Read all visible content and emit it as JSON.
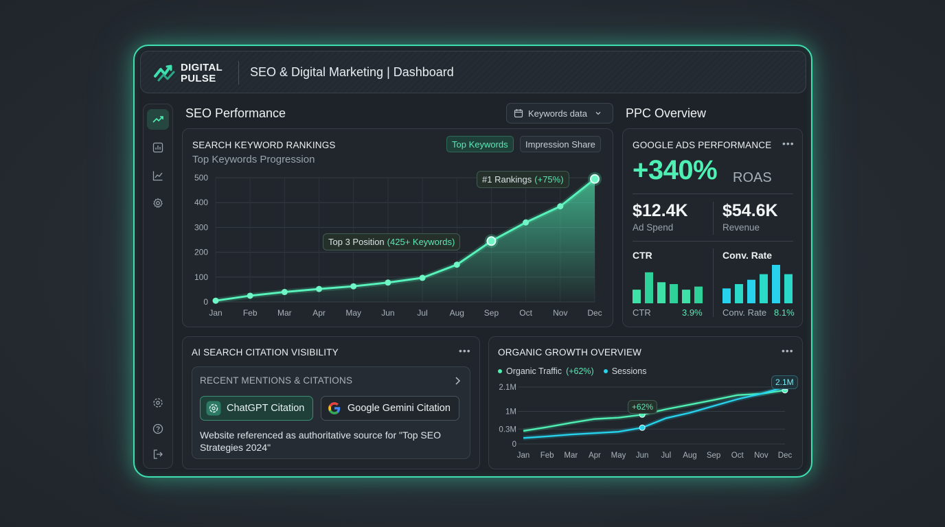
{
  "brand": {
    "line1": "DIGITAL",
    "line2": "PULSE"
  },
  "header": {
    "title": "SEO & Digital Marketing | Dashboard"
  },
  "sidebar": {
    "top_icons": [
      "trend-icon",
      "bar-chart-icon",
      "line-chart-icon",
      "settings-icon"
    ],
    "bottom_icons": [
      "gear-icon",
      "help-icon",
      "logout-icon"
    ]
  },
  "seo": {
    "section_title": "SEO Performance",
    "dropdown_label": "Keywords data",
    "card_title": "SEARCH KEYWORD RANKINGS",
    "subtitle": "Top Keywords Progression",
    "toggle": [
      "Top Keywords",
      "Impression Share"
    ],
    "tooltip_top3": {
      "label": "Top 3 Position",
      "value": "(425+ Keywords)"
    },
    "tooltip_rank1": {
      "label": "#1 Rankings",
      "value": "(+75%)"
    }
  },
  "ppc": {
    "section_title": "PPC Overview",
    "card_title": "GOOGLE ADS PERFORMANCE",
    "roas_value": "+340%",
    "roas_label": "ROAS",
    "ad_spend": {
      "value": "$12.4K",
      "label": "Ad Spend"
    },
    "revenue": {
      "value": "$54.6K",
      "label": "Revenue"
    },
    "ctr": {
      "title": "CTR",
      "foot_label": "CTR",
      "foot_value": "3.9%"
    },
    "conv": {
      "title": "Conv. Rate",
      "foot_label": "Conv. Rate",
      "foot_value": "8.1%"
    }
  },
  "ai": {
    "card_title": "AI SEARCH CITATION VISIBILITY",
    "mentions_header": "RECENT MENTIONS & CITATIONS",
    "chatgpt_label": "ChatGPT Citation",
    "gemini_label": "Google Gemini Citation",
    "description": "Website referenced as authoritative source for \"Top SEO Strategies 2024\""
  },
  "organic": {
    "card_title": "ORGANIC GROWTH OVERVIEW",
    "legend_traffic": "Organic Traffic",
    "legend_traffic_change": "(+62%)",
    "legend_sessions": "Sessions",
    "tooltip_mid": "+62%",
    "tooltip_end": "2.1M"
  },
  "colors": {
    "accent": "#4ff0b4",
    "cyan": "#27d3ec",
    "frame": "#3fe0b0"
  },
  "chart_data": [
    {
      "type": "area",
      "title": "SEARCH KEYWORD RANKINGS",
      "x": [
        "Jan",
        "Feb",
        "Mar",
        "Apr",
        "May",
        "Jun",
        "Jul",
        "Aug",
        "Sep",
        "Oct",
        "Nov",
        "Dec"
      ],
      "values": [
        5,
        25,
        40,
        52,
        63,
        78,
        97,
        150,
        245,
        320,
        385,
        495
      ],
      "ylim": [
        0,
        500
      ],
      "yticks": [
        0,
        100,
        200,
        300,
        400,
        500
      ],
      "grid": true
    },
    {
      "type": "bar",
      "title": "CTR",
      "values": [
        22,
        50,
        34,
        31,
        22,
        27
      ]
    },
    {
      "type": "bar",
      "title": "Conv. Rate",
      "values": [
        24,
        31,
        38,
        47,
        62,
        47
      ]
    },
    {
      "type": "line",
      "title": "ORGANIC GROWTH OVERVIEW",
      "x": [
        "Jan",
        "Feb",
        "Mar",
        "Apr",
        "May",
        "Jun",
        "Jul",
        "Aug",
        "Sep",
        "Oct",
        "Nov",
        "Dec"
      ],
      "yticks_labels": [
        "0",
        "0.3M",
        "1M",
        "2.1M"
      ],
      "series": [
        {
          "name": "Organic Traffic",
          "values": [
            0.48,
            0.62,
            0.78,
            0.92,
            0.97,
            1.08,
            1.28,
            1.45,
            1.62,
            1.8,
            1.85,
            1.98
          ]
        },
        {
          "name": "Sessions",
          "values": [
            0.22,
            0.28,
            0.35,
            0.4,
            0.45,
            0.6,
            0.95,
            1.15,
            1.4,
            1.65,
            1.85,
            2.1
          ]
        }
      ],
      "grid": true
    }
  ]
}
